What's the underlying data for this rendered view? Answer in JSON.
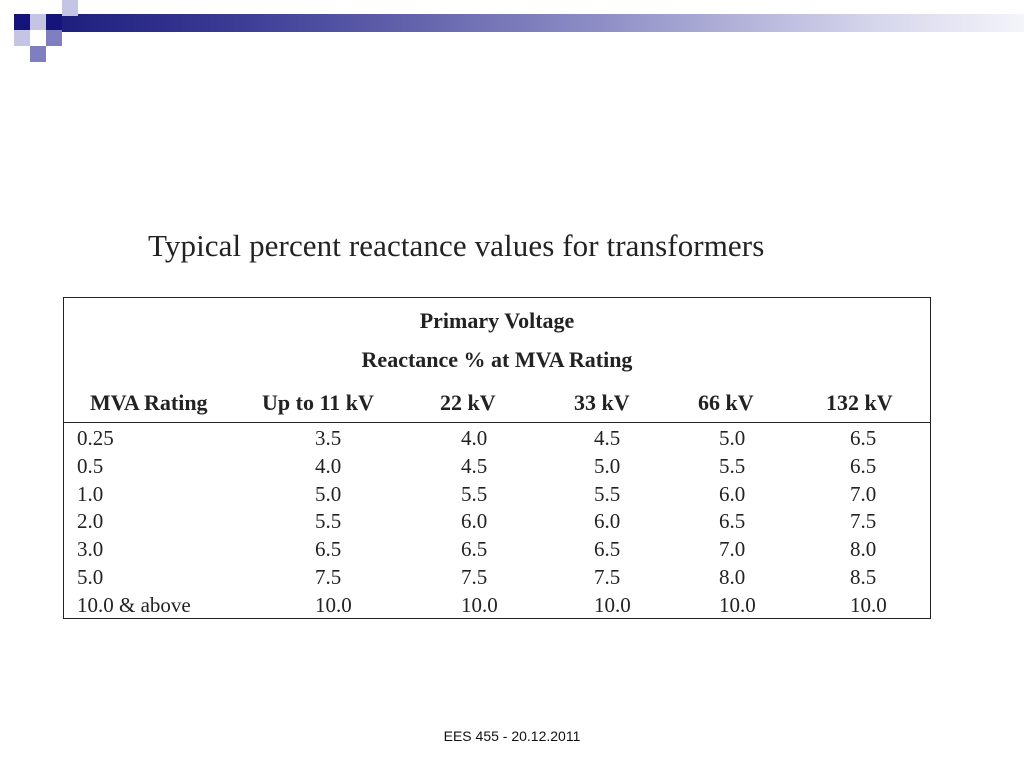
{
  "slide": {
    "title": "Typical percent reactance values for transformers",
    "footer": "EES 455 - 20.12.2011"
  },
  "table": {
    "header_line1": "Primary Voltage",
    "header_line2": "Reactance % at MVA Rating",
    "columns": [
      "MVA Rating",
      "Up to 11 kV",
      "22 kV",
      "33 kV",
      "66 kV",
      "132 kV"
    ],
    "rows": [
      [
        "0.25",
        "3.5",
        "4.0",
        "4.5",
        "5.0",
        "6.5"
      ],
      [
        "0.5",
        "4.0",
        "4.5",
        "5.0",
        "5.5",
        "6.5"
      ],
      [
        "1.0",
        "5.0",
        "5.5",
        "5.5",
        "6.0",
        "7.0"
      ],
      [
        "2.0",
        "5.5",
        "6.0",
        "6.0",
        "6.5",
        "7.5"
      ],
      [
        "3.0",
        "6.5",
        "6.5",
        "6.5",
        "7.0",
        "8.0"
      ],
      [
        "5.0",
        "7.5",
        "7.5",
        "7.5",
        "8.0",
        "8.5"
      ],
      [
        "10.0 & above",
        "10.0",
        "10.0",
        "10.0",
        "10.0",
        "10.0"
      ]
    ]
  },
  "theme": {
    "accent_dark": "#14147a",
    "accent_mid": "#7f7fc0",
    "text": "#222222"
  }
}
